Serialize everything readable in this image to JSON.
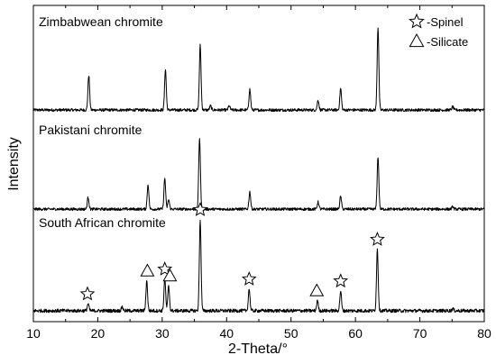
{
  "chart_data": {
    "type": "line",
    "xlabel": "2-Theta/°",
    "ylabel": "Intensity",
    "xlim": [
      10,
      80
    ],
    "x_ticks": [
      10,
      20,
      30,
      40,
      50,
      60,
      70,
      80
    ],
    "y_ticks_shown": false,
    "grid": false,
    "legend": {
      "placement": "top-right",
      "entries": [
        {
          "symbol": "star",
          "label": "-Spinel"
        },
        {
          "symbol": "triangle",
          "label": "-Silicate"
        }
      ]
    },
    "series": [
      {
        "name": "Zimbabwean chromite",
        "peaks": [
          {
            "x": 18.6,
            "h": 0.42
          },
          {
            "x": 30.5,
            "h": 0.49
          },
          {
            "x": 35.9,
            "h": 0.78
          },
          {
            "x": 37.5,
            "h": 0.05
          },
          {
            "x": 40.4,
            "h": 0.05
          },
          {
            "x": 43.6,
            "h": 0.25
          },
          {
            "x": 54.2,
            "h": 0.12
          },
          {
            "x": 57.7,
            "h": 0.26
          },
          {
            "x": 63.5,
            "h": 1.0
          },
          {
            "x": 75.1,
            "h": 0.04
          }
        ]
      },
      {
        "name": "Pakistani chromite",
        "peaks": [
          {
            "x": 18.5,
            "h": 0.15
          },
          {
            "x": 27.8,
            "h": 0.31
          },
          {
            "x": 30.4,
            "h": 0.39
          },
          {
            "x": 31.0,
            "h": 0.12
          },
          {
            "x": 35.8,
            "h": 0.9
          },
          {
            "x": 43.6,
            "h": 0.22
          },
          {
            "x": 54.2,
            "h": 0.09
          },
          {
            "x": 57.7,
            "h": 0.16
          },
          {
            "x": 63.5,
            "h": 0.66
          },
          {
            "x": 75.1,
            "h": 0.03
          }
        ]
      },
      {
        "name": "South African chromite",
        "peaks": [
          {
            "x": 18.5,
            "h": 0.07
          },
          {
            "x": 23.8,
            "h": 0.04
          },
          {
            "x": 27.6,
            "h": 0.3
          },
          {
            "x": 30.4,
            "h": 0.32
          },
          {
            "x": 31.0,
            "h": 0.25
          },
          {
            "x": 35.9,
            "h": 0.92
          },
          {
            "x": 43.5,
            "h": 0.22
          },
          {
            "x": 54.1,
            "h": 0.1
          },
          {
            "x": 57.7,
            "h": 0.2
          },
          {
            "x": 63.4,
            "h": 0.62
          },
          {
            "x": 75.1,
            "h": 0.02
          }
        ],
        "annotations": [
          {
            "x": 18.4,
            "symbol": "star"
          },
          {
            "x": 27.7,
            "symbol": "triangle"
          },
          {
            "x": 30.4,
            "symbol": "star"
          },
          {
            "x": 31.2,
            "symbol": "triangle"
          },
          {
            "x": 35.9,
            "symbol": "star"
          },
          {
            "x": 43.5,
            "symbol": "star"
          },
          {
            "x": 54.0,
            "symbol": "triangle"
          },
          {
            "x": 57.7,
            "symbol": "star"
          },
          {
            "x": 63.4,
            "symbol": "star"
          }
        ]
      }
    ]
  }
}
